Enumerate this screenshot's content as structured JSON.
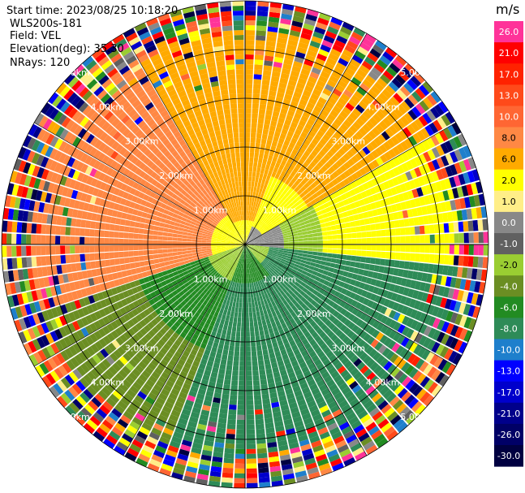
{
  "header": {
    "start_time": "Start time: 2023/08/25 10:18:20",
    "instrument": "WLS200s-181",
    "field": "Field: VEL",
    "elevation": "Elevation(deg): 35.30",
    "nrays": "NRays: 120"
  },
  "chart_data": {
    "type": "heatmap",
    "projection": "polar-ppi",
    "field": "VEL",
    "units": "m/s",
    "n_rays": 120,
    "range_rings_km": [
      1,
      2,
      3,
      4,
      5
    ],
    "ring_labels": [
      "1.00km",
      "2.00km",
      "3.00km",
      "4.00km",
      "5.00km"
    ],
    "colorbar": {
      "unit_label": "m/s",
      "tick_labels": [
        "26.0",
        "21.0",
        "17.0",
        "13.0",
        "10.0",
        "8.0",
        "6.0",
        "2.0",
        "1.0",
        "0.0",
        "-1.0",
        "-2.0",
        "-4.0",
        "-6.0",
        "-8.0",
        "-10.0",
        "-13.0",
        "-17.0",
        "-21.0",
        "-26.0",
        "-30.0"
      ],
      "colors": [
        "#ff3399",
        "#ff0000",
        "#ff2200",
        "#ff4a1a",
        "#ff6633",
        "#ff8844",
        "#ffaa00",
        "#ffff00",
        "#ffee88",
        "#888888",
        "#606060",
        "#9acd32",
        "#6b8e23",
        "#228b22",
        "#2e8b57",
        "#1e7fcc",
        "#0000ff",
        "#0000cc",
        "#00008b",
        "#000066",
        "#000040"
      ]
    },
    "sectors": [
      {
        "az_start": 250,
        "az_end": 330,
        "near_km": 0.7,
        "mid_km": 2.0,
        "near_value": 2.0,
        "mid_value": 8.0,
        "far_value": 8.0
      },
      {
        "az_start": 330,
        "az_end": 20,
        "near_km": 0.5,
        "mid_km": 1.6,
        "near_value": 2.0,
        "mid_value": 6.0,
        "far_value": 6.0
      },
      {
        "az_start": 20,
        "az_end": 60,
        "near_km": 0.4,
        "mid_km": 1.5,
        "near_value": 0.0,
        "mid_value": 2.0,
        "far_value": 6.0
      },
      {
        "az_start": 60,
        "az_end": 95,
        "near_km": 0.8,
        "mid_km": 1.6,
        "near_value": 0.0,
        "mid_value": -2.0,
        "far_value": 2.0
      },
      {
        "az_start": 95,
        "az_end": 140,
        "near_km": 0.5,
        "mid_km": 1.5,
        "near_value": -2.0,
        "mid_value": -8.0,
        "far_value": -8.0
      },
      {
        "az_start": 140,
        "az_end": 200,
        "near_km": 0.8,
        "mid_km": 2.2,
        "near_value": -6.0,
        "mid_value": -8.0,
        "far_value": -8.0
      },
      {
        "az_start": 200,
        "az_end": 250,
        "near_km": 0.8,
        "mid_km": 2.3,
        "near_value": -2.0,
        "mid_value": -6.0,
        "far_value": -4.0
      }
    ],
    "noise_start_km": 4.4
  }
}
